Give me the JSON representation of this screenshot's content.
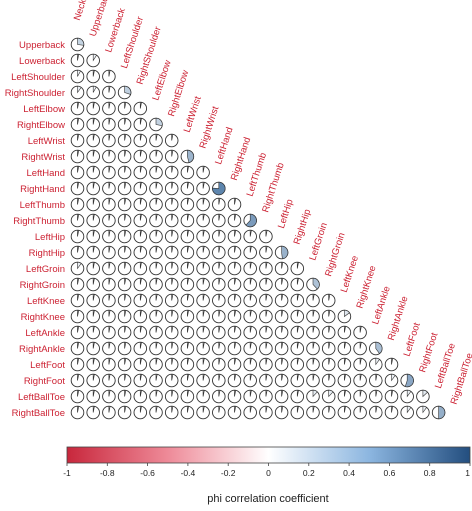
{
  "chart_data": {
    "type": "heatmap",
    "style": "correlation-pie-lower-triangle",
    "variables": [
      "Neck",
      "Upperback",
      "Lowerback",
      "LeftShoulder",
      "RightShoulder",
      "LeftElbow",
      "RightElbow",
      "LeftWrist",
      "RightWrist",
      "LeftHand",
      "RightHand",
      "LeftThumb",
      "RightThumb",
      "LeftHip",
      "RightHip",
      "LeftGroin",
      "RightGroin",
      "LeftKnee",
      "RightKnee",
      "LeftAnkle",
      "RightAnkle",
      "LeftFoot",
      "RightFoot",
      "LeftBallToe",
      "RightBallToe"
    ],
    "diagonal_label_rows": "variables[0..24] (column label drawn above each diagonal cell)",
    "value_range": [
      -1,
      1
    ],
    "colorbar": {
      "ticks": [
        "-1",
        "-0.8",
        "-0.6",
        "-0.4",
        "-0.2",
        "0",
        "0.2",
        "0.4",
        "0.6",
        "0.8",
        "1"
      ],
      "tick_values": [
        -1,
        -0.8,
        -0.6,
        -0.4,
        -0.2,
        0,
        0.2,
        0.4,
        0.6,
        0.8,
        1
      ],
      "title": "phi correlation coefficient",
      "negative_color": "#c8273c",
      "zero_color": "#ffffff",
      "positive_color": "#2a5e93"
    },
    "default_small_value": 0.03,
    "pairs": [
      {
        "row": "Upperback",
        "col": "Neck",
        "value": 0.27
      },
      {
        "row": "Lowerback",
        "col": "Upperback",
        "value": 0.09
      },
      {
        "row": "RightShoulder",
        "col": "LeftShoulder",
        "value": 0.3
      },
      {
        "row": "RightElbow",
        "col": "LeftElbow",
        "value": 0.28
      },
      {
        "row": "RightWrist",
        "col": "LeftWrist",
        "value": 0.46
      },
      {
        "row": "RightHand",
        "col": "LeftHand",
        "value": 0.76
      },
      {
        "row": "RightThumb",
        "col": "LeftThumb",
        "value": 0.62
      },
      {
        "row": "RightHip",
        "col": "LeftHip",
        "value": 0.48
      },
      {
        "row": "RightGroin",
        "col": "LeftGroin",
        "value": 0.38
      },
      {
        "row": "RightKnee",
        "col": "LeftKnee",
        "value": 0.15
      },
      {
        "row": "RightAnkle",
        "col": "LeftAnkle",
        "value": 0.4
      },
      {
        "row": "RightFoot",
        "col": "LeftFoot",
        "value": 0.55
      },
      {
        "row": "RightBallToe",
        "col": "LeftBallToe",
        "value": 0.5
      },
      {
        "row": "LeftShoulder",
        "col": "Neck",
        "value": 0.08
      },
      {
        "row": "RightShoulder",
        "col": "Neck",
        "value": 0.1
      },
      {
        "row": "RightShoulder",
        "col": "Upperback",
        "value": 0.08
      },
      {
        "row": "LeftGroin",
        "col": "Neck",
        "value": 0.1
      },
      {
        "row": "LeftBallToe",
        "col": "LeftGroin",
        "value": 0.12
      },
      {
        "row": "LeftBallToe",
        "col": "RightGroin",
        "value": 0.12
      },
      {
        "row": "LeftBallToe",
        "col": "LeftFoot",
        "value": 0.1
      },
      {
        "row": "LeftBallToe",
        "col": "RightFoot",
        "value": 0.13
      },
      {
        "row": "RightBallToe",
        "col": "LeftFoot",
        "value": 0.1
      },
      {
        "row": "RightBallToe",
        "col": "RightFoot",
        "value": 0.1
      },
      {
        "row": "LeftFoot",
        "col": "LeftAnkle",
        "value": 0.1
      },
      {
        "row": "RightFoot",
        "col": "RightAnkle",
        "value": 0.1
      }
    ]
  }
}
